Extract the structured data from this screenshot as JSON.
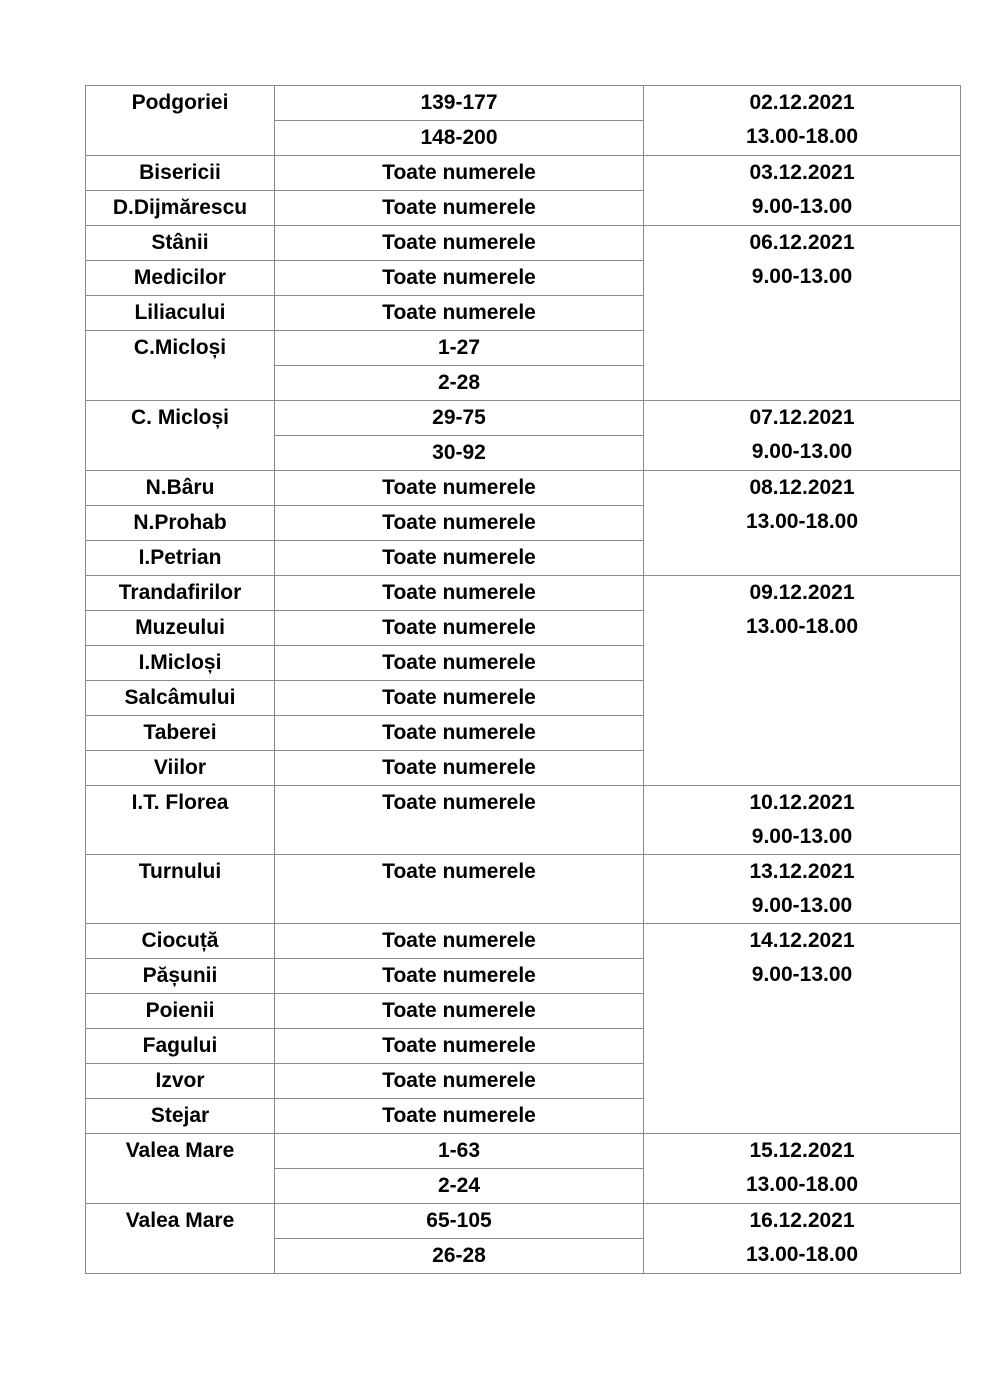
{
  "schedule": [
    {
      "date": "02.12.2021",
      "time": "13.00-18.00",
      "streets": [
        {
          "name": "Podgoriei",
          "numbers": [
            "139-177",
            "148-200"
          ]
        }
      ]
    },
    {
      "date": "03.12.2021",
      "time": "9.00-13.00",
      "streets": [
        {
          "name": "Bisericii",
          "numbers": [
            "Toate numerele"
          ]
        },
        {
          "name": "D.Dijmărescu",
          "numbers": [
            "Toate numerele"
          ]
        }
      ]
    },
    {
      "date": "06.12.2021",
      "time": "9.00-13.00",
      "streets": [
        {
          "name": "Stânii",
          "numbers": [
            "Toate numerele"
          ]
        },
        {
          "name": "Medicilor",
          "numbers": [
            "Toate numerele"
          ]
        },
        {
          "name": "Liliacului",
          "numbers": [
            "Toate numerele"
          ]
        },
        {
          "name": "C.Micloși",
          "numbers": [
            "1-27",
            "2-28"
          ]
        }
      ]
    },
    {
      "date": "07.12.2021",
      "time": "9.00-13.00",
      "streets": [
        {
          "name": "C. Micloși",
          "numbers": [
            "29-75",
            "30-92"
          ]
        }
      ]
    },
    {
      "date": "08.12.2021",
      "time": "13.00-18.00",
      "streets": [
        {
          "name": "N.Bâru",
          "numbers": [
            "Toate numerele"
          ]
        },
        {
          "name": "N.Prohab",
          "numbers": [
            "Toate numerele"
          ]
        },
        {
          "name": "I.Petrian",
          "numbers": [
            "Toate numerele"
          ]
        }
      ]
    },
    {
      "date": "09.12.2021",
      "time": "13.00-18.00",
      "streets": [
        {
          "name": "Trandafirilor",
          "numbers": [
            "Toate numerele"
          ]
        },
        {
          "name": "Muzeului",
          "numbers": [
            "Toate numerele"
          ]
        },
        {
          "name": "I.Micloși",
          "numbers": [
            "Toate numerele"
          ]
        },
        {
          "name": "Salcâmului",
          "numbers": [
            "Toate numerele"
          ]
        },
        {
          "name": "Taberei",
          "numbers": [
            "Toate numerele"
          ]
        },
        {
          "name": "Viilor",
          "numbers": [
            "Toate numerele"
          ]
        }
      ]
    },
    {
      "date": "10.12.2021",
      "time": "9.00-13.00",
      "tall": true,
      "streets": [
        {
          "name": "I.T. Florea",
          "numbers": [
            "Toate numerele"
          ]
        }
      ]
    },
    {
      "date": "13.12.2021",
      "time": "9.00-13.00",
      "tall": true,
      "streets": [
        {
          "name": "Turnului",
          "numbers": [
            "Toate numerele"
          ]
        }
      ]
    },
    {
      "date": "14.12.2021",
      "time": "9.00-13.00",
      "streets": [
        {
          "name": "Ciocuță",
          "numbers": [
            "Toate numerele"
          ]
        },
        {
          "name": "Pășunii",
          "numbers": [
            "Toate numerele"
          ]
        },
        {
          "name": "Poienii",
          "numbers": [
            "Toate numerele"
          ]
        },
        {
          "name": "Fagului",
          "numbers": [
            "Toate numerele"
          ]
        },
        {
          "name": "Izvor",
          "numbers": [
            "Toate numerele"
          ]
        },
        {
          "name": "Stejar",
          "numbers": [
            "Toate numerele"
          ]
        }
      ]
    },
    {
      "date": "15.12.2021",
      "time": "13.00-18.00",
      "streets": [
        {
          "name": "Valea Mare",
          "numbers": [
            "1-63",
            "2-24"
          ]
        }
      ]
    },
    {
      "date": "16.12.2021",
      "time": "13.00-18.00",
      "streets": [
        {
          "name": "Valea Mare",
          "numbers": [
            "65-105",
            "26-28"
          ]
        }
      ]
    }
  ]
}
